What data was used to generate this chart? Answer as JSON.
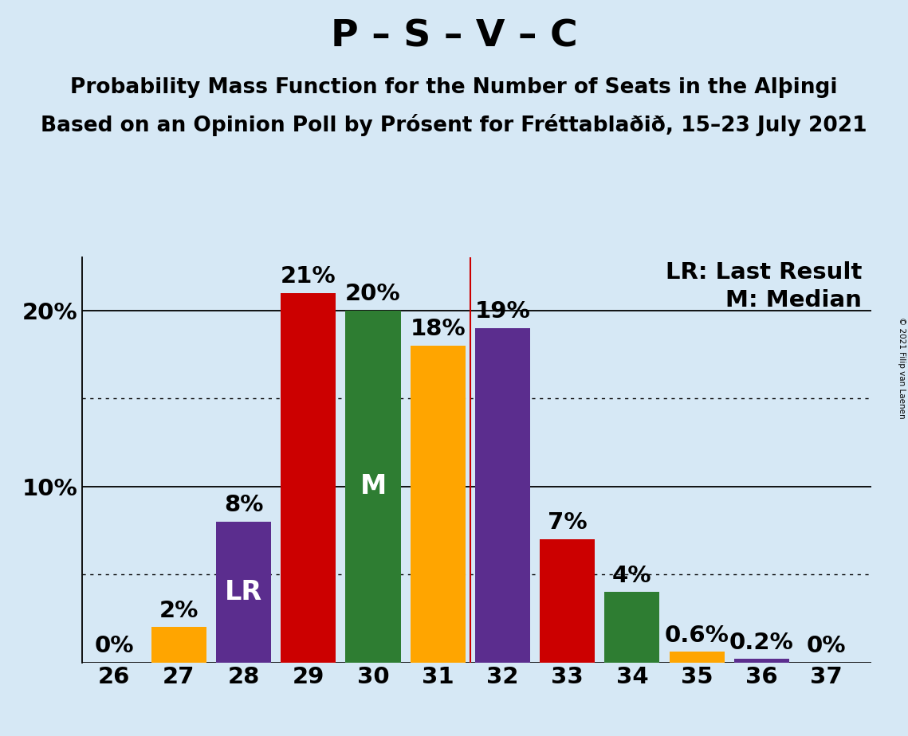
{
  "title": "P – S – V – C",
  "subtitle1": "Probability Mass Function for the Number of Seats in the Alþingi",
  "subtitle2": "Based on an Opinion Poll by Prósent for Fréttablaðið, 15–23 July 2021",
  "copyright": "© 2021 Filip van Laenen",
  "seats": [
    26,
    27,
    28,
    29,
    30,
    31,
    32,
    33,
    34,
    35,
    36,
    37
  ],
  "probabilities": [
    0.0,
    2.0,
    8.0,
    21.0,
    20.0,
    18.0,
    19.0,
    7.0,
    4.0,
    0.6,
    0.2,
    0.0
  ],
  "bar_colors": [
    "#FFA500",
    "#FFA500",
    "#5B2D8E",
    "#CC0000",
    "#2E7D32",
    "#FFA500",
    "#5B2D8E",
    "#CC0000",
    "#2E7D32",
    "#FFA500",
    "#5B2D8E",
    "#5B2D8E"
  ],
  "lr_seat": 28,
  "median_seat": 30,
  "lr_label": "LR",
  "median_label": "M",
  "legend_lr": "LR: Last Result",
  "legend_m": "M: Median",
  "last_result_line_x": 31.5,
  "ylim": [
    0,
    23
  ],
  "xlim": [
    25.5,
    37.7
  ],
  "background_color": "#D6E8F5",
  "title_fontsize": 34,
  "subtitle_fontsize": 19,
  "tick_fontsize": 21,
  "annotation_fontsize": 21,
  "bar_width": 0.85
}
